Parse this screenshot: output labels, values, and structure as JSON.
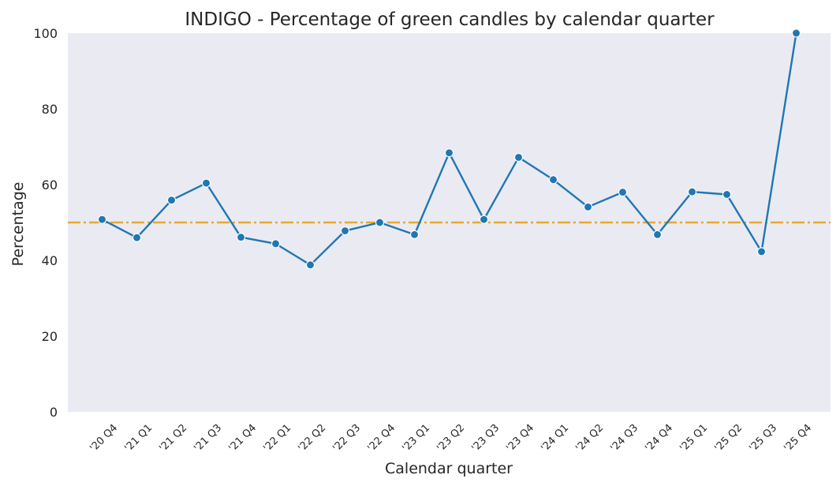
{
  "chart_data": {
    "type": "line",
    "title": "INDIGO - Percentage of green candles by calendar quarter",
    "xlabel": "Calendar quarter",
    "ylabel": "Percentage",
    "ylim": [
      0,
      100
    ],
    "yticks": [
      0,
      20,
      40,
      60,
      80,
      100
    ],
    "grid": false,
    "legend": "none",
    "categories": [
      "'20 Q4",
      "'21 Q1",
      "'21 Q2",
      "'21 Q3",
      "'21 Q4",
      "'22 Q1",
      "'22 Q2",
      "'22 Q3",
      "'22 Q4",
      "'23 Q1",
      "'23 Q2",
      "'23 Q3",
      "'23 Q4",
      "'24 Q1",
      "'24 Q2",
      "'24 Q3",
      "'24 Q4",
      "'25 Q1",
      "'25 Q2",
      "'25 Q3",
      "'25 Q4"
    ],
    "series": [
      {
        "values": [
          50.8,
          46.0,
          55.9,
          60.4,
          46.1,
          44.4,
          38.8,
          47.8,
          50.0,
          46.8,
          68.4,
          50.8,
          67.2,
          61.3,
          54.1,
          58.0,
          46.8,
          58.1,
          57.4,
          42.3,
          100.0
        ]
      }
    ],
    "reference_line": {
      "y": 50,
      "style": "dash-dot"
    },
    "colors": {
      "background": "#eaeaf2",
      "line": "#1f77b4",
      "marker": "#1f77b4",
      "marker_edge": "#ffffff",
      "reference": "#e6a832",
      "text": "#262626"
    }
  }
}
